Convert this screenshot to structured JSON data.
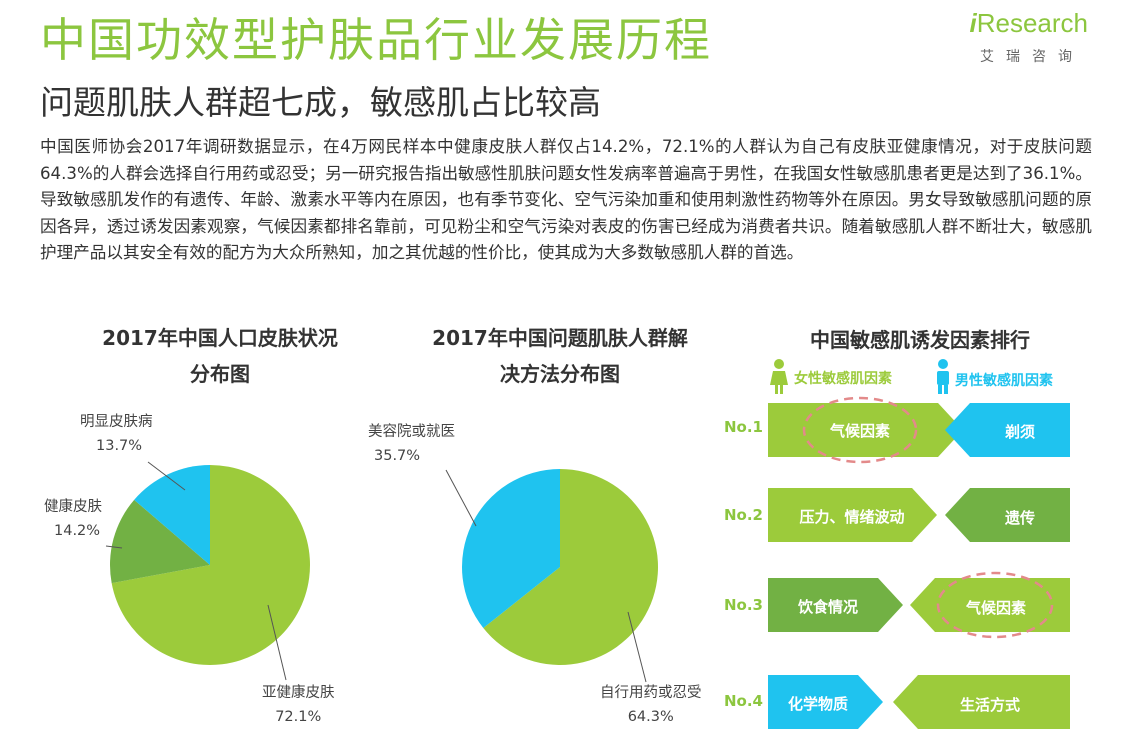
{
  "header": {
    "main_title": "中国功效型护肤品行业发展历程",
    "sub_title": "问题肌肤人群超七成，敏感肌占比较高",
    "logo_text": "Research",
    "logo_i": "i",
    "logo_sub": "艾瑞咨询"
  },
  "body_text": "中国医师协会2017年调研数据显示，在4万网民样本中健康皮肤人群仅占14.2%，72.1%的人群认为自己有皮肤亚健康情况，对于皮肤问题64.3%的人群会选择自行用药或忍受；另一研究报告指出敏感性肌肤问题女性发病率普遍高于男性，在我国女性敏感肌患者更是达到了36.1%。导致敏感肌发作的有遗传、年龄、激素水平等内在原因，也有季节变化、空气污染加重和使用刺激性药物等外在原因。男女导致敏感肌问题的原因各异，透过诱发因素观察，气候因素都排名靠前，可见粉尘和空气污染对表皮的伤害已经成为消费者共识。随着敏感肌人群不断壮大，敏感肌护理产品以其安全有效的配方为大众所熟知，加之其优越的性价比，使其成为大多数敏感肌人群的首选。",
  "colors": {
    "green": "#9ccb3b",
    "dark_green": "#72b144",
    "blue": "#1fc3ef",
    "title_green": "#8cc63f"
  },
  "chart_data": [
    {
      "type": "pie",
      "title_line1": "2017年中国人口皮肤状况",
      "title_line2": "分布图",
      "slices": [
        {
          "label": "亚健康皮肤",
          "value": 72.1,
          "value_text": "72.1%",
          "color": "#9ccb3b"
        },
        {
          "label": "健康皮肤",
          "value": 14.2,
          "value_text": "14.2%",
          "color": "#72b144"
        },
        {
          "label": "明显皮肤病",
          "value": 13.7,
          "value_text": "13.7%",
          "color": "#1fc3ef"
        }
      ]
    },
    {
      "type": "pie",
      "title_line1": "2017年中国问题肌肤人群解",
      "title_line2": "决方法分布图",
      "slices": [
        {
          "label": "自行用药或忍受",
          "value": 64.3,
          "value_text": "64.3%",
          "color": "#9ccb3b"
        },
        {
          "label": "美容院或就医",
          "value": 35.7,
          "value_text": "35.7%",
          "color": "#1fc3ef"
        }
      ]
    }
  ],
  "ranking": {
    "title": "中国敏感肌诱发因素排行",
    "legend_female": "女性敏感肌因素",
    "legend_male": "男性敏感肌因素",
    "rows": [
      {
        "rank": "No.1",
        "female": "气候因素",
        "male": "剃须",
        "female_color": "#9ccb3b",
        "male_color": "#1fc3ef"
      },
      {
        "rank": "No.2",
        "female": "压力、情绪波动",
        "male": "遗传",
        "female_color": "#9ccb3b",
        "male_color": "#72b144"
      },
      {
        "rank": "No.3",
        "female": "饮食情况",
        "male": "气候因素",
        "female_color": "#72b144",
        "male_color": "#9ccb3b"
      },
      {
        "rank": "No.4",
        "female": "化学物质",
        "male": "生活方式",
        "female_color": "#1fc3ef",
        "male_color": "#9ccb3b"
      }
    ]
  }
}
